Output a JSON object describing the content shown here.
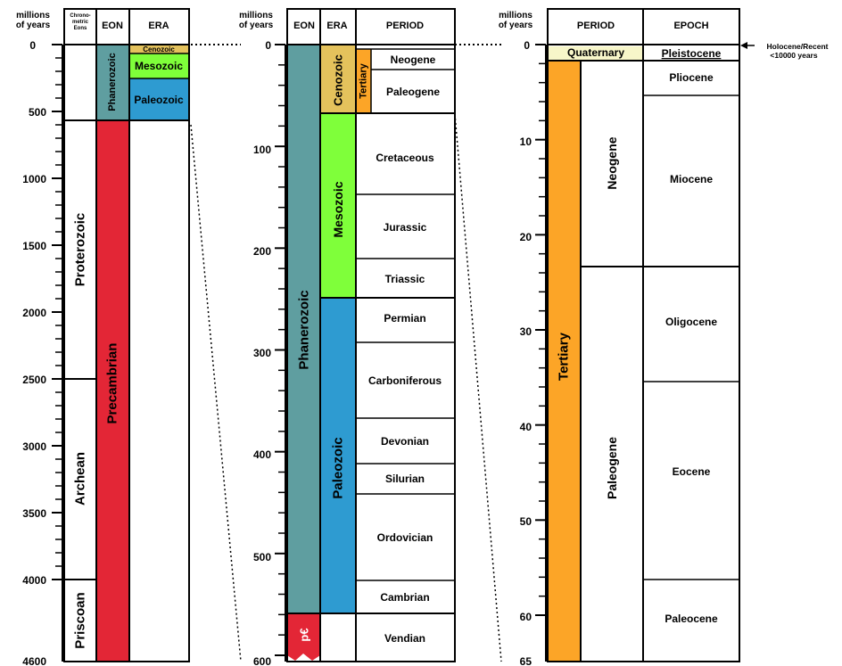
{
  "panel1": {
    "header_myears": [
      "millions",
      "of years"
    ],
    "header_chrono": [
      "Chrono-",
      "metric",
      "Eons"
    ],
    "header_eon": "EON",
    "header_era": "ERA",
    "ticks": [
      "0",
      "500",
      "1000",
      "1500",
      "2000",
      "2500",
      "3000",
      "3500",
      "4000",
      "4600"
    ],
    "chrono_eons": [
      "Proterozoic",
      "Archean",
      "Priscoan"
    ],
    "eons": [
      "Phanerozoic",
      "Precambrian"
    ],
    "eras": [
      "Cenozoic",
      "Mesozoic",
      "Paleozoic"
    ]
  },
  "panel2": {
    "header_myears": [
      "millions",
      "of years"
    ],
    "header_eon": "EON",
    "header_era": "ERA",
    "header_period": "PERIOD",
    "ticks": [
      "0",
      "100",
      "200",
      "300",
      "400",
      "500",
      "600"
    ],
    "eons": [
      "Phanerozoic",
      "p€"
    ],
    "eras": [
      "Cenozoic",
      "Mesozoic",
      "Paleozoic"
    ],
    "subera": "Tertiary",
    "periods": [
      "Neogene",
      "Paleogene",
      "Cretaceous",
      "Jurassic",
      "Triassic",
      "Permian",
      "Carboniferous",
      "Devonian",
      "Silurian",
      "Ordovician",
      "Cambrian",
      "Vendian"
    ]
  },
  "panel3": {
    "header_myears": [
      "millions",
      "of years"
    ],
    "header_period": "PERIOD",
    "header_epoch": "EPOCH",
    "ticks": [
      "0",
      "10",
      "20",
      "30",
      "40",
      "50",
      "60",
      "65"
    ],
    "periods": [
      "Quaternary",
      "Tertiary"
    ],
    "subperiods": [
      "Neogene",
      "Paleogene"
    ],
    "epochs": [
      "Pleistocene",
      "Pliocene",
      "Miocene",
      "Oligocene",
      "Eocene",
      "Paleocene"
    ],
    "holocene_note": [
      "Holocene/Recent",
      "<10000 years"
    ]
  },
  "colors": {
    "phanerozoic": "#5f9ea0",
    "precambrian": "#e32636",
    "cenozoic": "#e4c25c",
    "mesozoic": "#7fff3a",
    "paleozoic": "#2e9bd1",
    "tertiary": "#fca527",
    "quaternary": "#f7f6c9"
  }
}
